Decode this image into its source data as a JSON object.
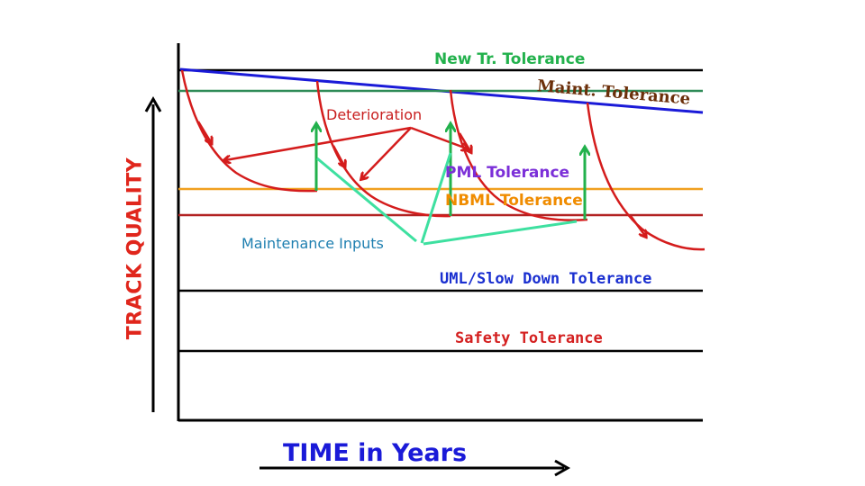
{
  "labels": {
    "y_axis": "TRACK QUALITY",
    "x_axis": "TIME in Years",
    "new_track_tolerance": "New Tr. Tolerance",
    "maint_tolerance": "Maint. Tolerance",
    "deterioration": "Deterioration",
    "pml_tolerance": "PML Tolerance",
    "nbml_tolerance": "NBML Tolerance",
    "maintenance_inputs": "Maintenance Inputs",
    "uml_tolerance": "UML/Slow Down Tolerance",
    "safety_tolerance": "Safety Tolerance"
  },
  "colors": {
    "axis": "#000000",
    "y_axis_label": "#e0261c",
    "x_axis_label": "#1a1ad8",
    "new_track_line": "#2e8b57",
    "maint_line": "#1a1ad8",
    "pml_line": "#f0a020",
    "nbml_line": "#b22222",
    "deterioration_curve": "#d41c1c",
    "maintenance_arrow": "#22b14c",
    "maintenance_pointer": "#3ee0a0",
    "deterioration_pointer": "#d41c1c"
  },
  "icons": {
    "y_axis_arrow": "arrow-up-icon",
    "x_axis_arrow": "arrow-right-icon"
  }
}
